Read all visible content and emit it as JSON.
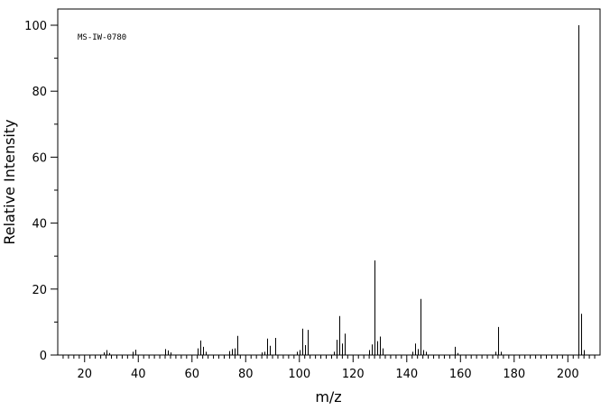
{
  "chart_data": {
    "type": "bar",
    "title": "",
    "annotation": "MS-IW-0780",
    "xlabel": "m/z",
    "ylabel": "Relative Intensity",
    "xlim": [
      10,
      212
    ],
    "ylim": [
      0,
      105
    ],
    "x_ticks": [
      20,
      40,
      60,
      80,
      100,
      120,
      140,
      160,
      180,
      200
    ],
    "y_ticks": [
      0,
      20,
      40,
      60,
      80,
      100
    ],
    "grid": false,
    "legend": "none",
    "x": [
      27,
      28,
      29,
      38,
      39,
      50,
      51,
      52,
      62,
      63,
      64,
      65,
      74,
      75,
      76,
      77,
      86,
      87,
      88,
      89,
      91,
      99,
      100,
      101,
      102,
      103,
      113,
      114,
      115,
      116,
      117,
      126,
      127,
      128,
      129,
      130,
      131,
      142,
      143,
      144,
      145,
      146,
      147,
      158,
      159,
      173,
      174,
      175,
      204,
      205,
      206
    ],
    "values": [
      0.8,
      1.5,
      0.6,
      1.0,
      1.6,
      1.8,
      1.4,
      0.8,
      2.0,
      4.4,
      2.5,
      1.0,
      1.2,
      1.8,
      2.0,
      5.8,
      0.8,
      1.0,
      5.0,
      2.8,
      5.2,
      1.0,
      1.5,
      8.0,
      3.0,
      7.6,
      1.0,
      4.6,
      11.8,
      3.5,
      6.5,
      1.5,
      3.2,
      28.7,
      4.2,
      5.6,
      2.0,
      1.0,
      3.5,
      1.8,
      17.0,
      1.5,
      1.0,
      2.5,
      0.6,
      1.0,
      8.5,
      1.0,
      100,
      12.5,
      1.5
    ]
  }
}
